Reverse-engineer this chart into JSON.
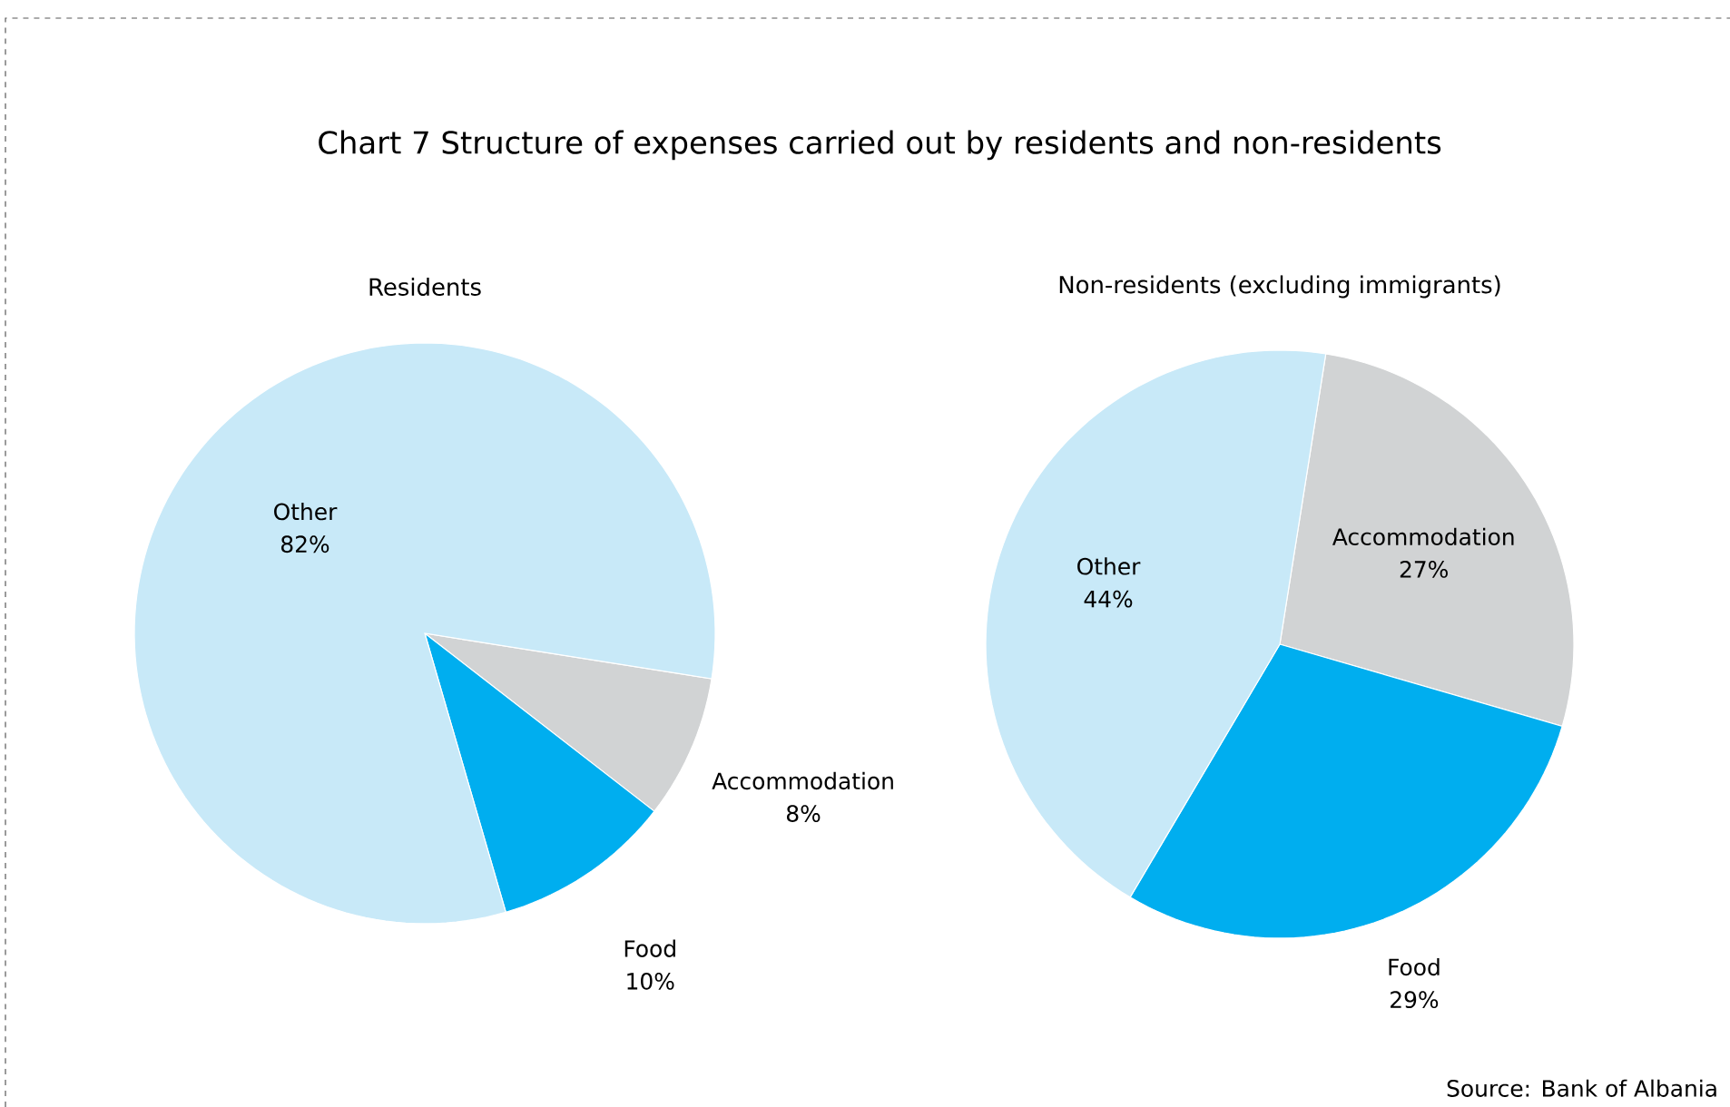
{
  "chart_data": [
    {
      "type": "pie",
      "title": "Chart 7 Structure of expenses carried out by residents and non-residents",
      "subtitle": "Residents",
      "categories": [
        "Accommodation",
        "Food",
        "Other"
      ],
      "values": [
        8,
        10,
        82
      ],
      "value_labels": [
        "8%",
        "10%",
        "82%"
      ],
      "colors": [
        "#d1d3d4",
        "#00aeef",
        "#c8e9f8"
      ]
    },
    {
      "type": "pie",
      "title": "Non-residents (excluding immigrants)",
      "categories": [
        "Accommodation",
        "Food",
        "Other"
      ],
      "values": [
        27,
        29,
        44
      ],
      "value_labels": [
        "27%",
        "29%",
        "44%"
      ],
      "colors": [
        "#d1d3d4",
        "#00aeef",
        "#c8e9f8"
      ],
      "annotations": [
        "Source: Bank of Albania"
      ]
    }
  ]
}
